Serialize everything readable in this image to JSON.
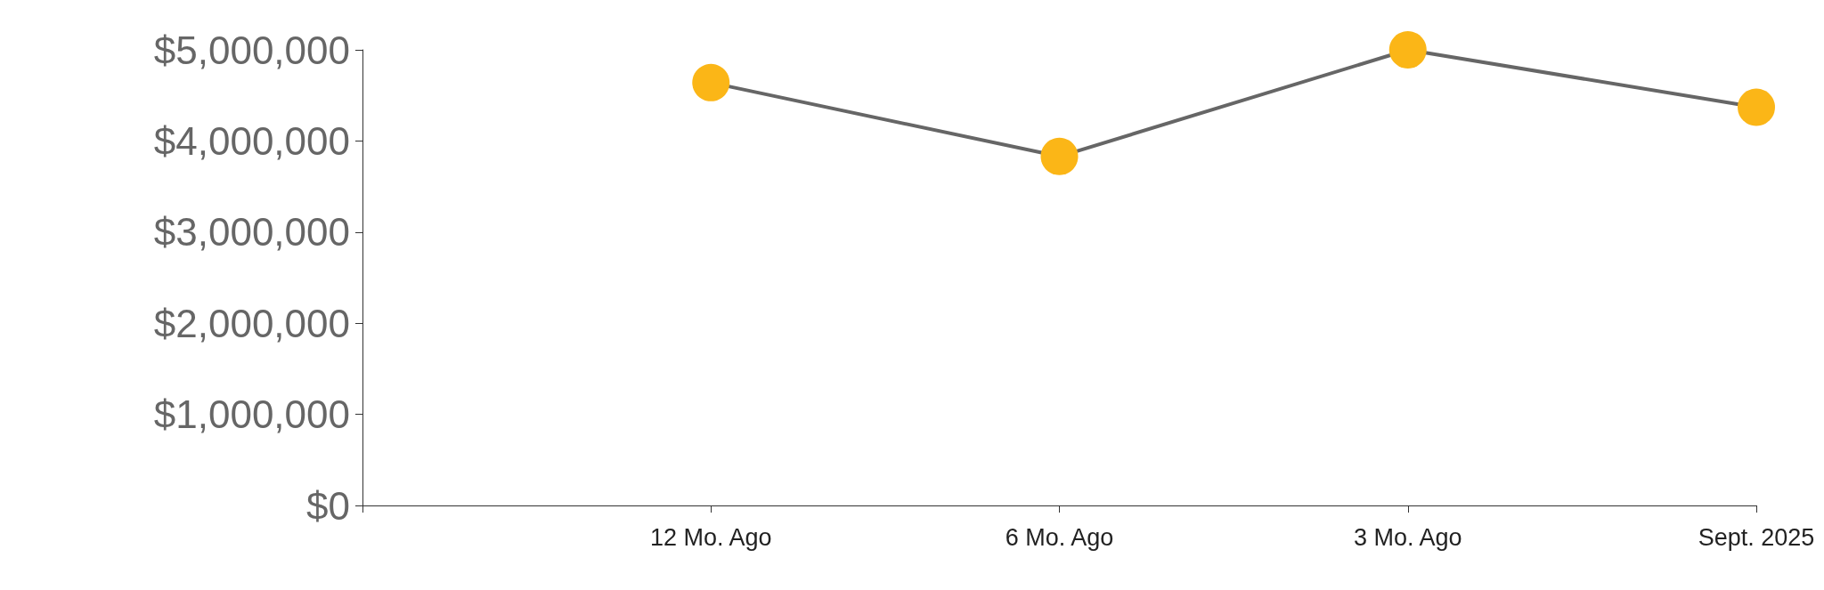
{
  "chart_data": {
    "type": "line",
    "categories": [
      null,
      "12 Mo. Ago",
      "6 Mo. Ago",
      "3 Mo. Ago",
      "Sept. 2025"
    ],
    "series": [
      {
        "color": "#fbb617",
        "values": [
          null,
          4640000,
          3830000,
          5000000,
          4370000
        ]
      }
    ],
    "ylim": [
      0,
      5000000
    ],
    "yticks": [
      {
        "value": 0,
        "label": "$0"
      },
      {
        "value": 1000000,
        "label": "$1,000,000"
      },
      {
        "value": 2000000,
        "label": "$2,000,000"
      },
      {
        "value": 3000000,
        "label": "$3,000,000"
      },
      {
        "value": 4000000,
        "label": "$4,000,000"
      },
      {
        "value": 5000000,
        "label": "$5,000,000"
      }
    ],
    "grid": false,
    "marker": "circle",
    "line_style": "solid"
  }
}
